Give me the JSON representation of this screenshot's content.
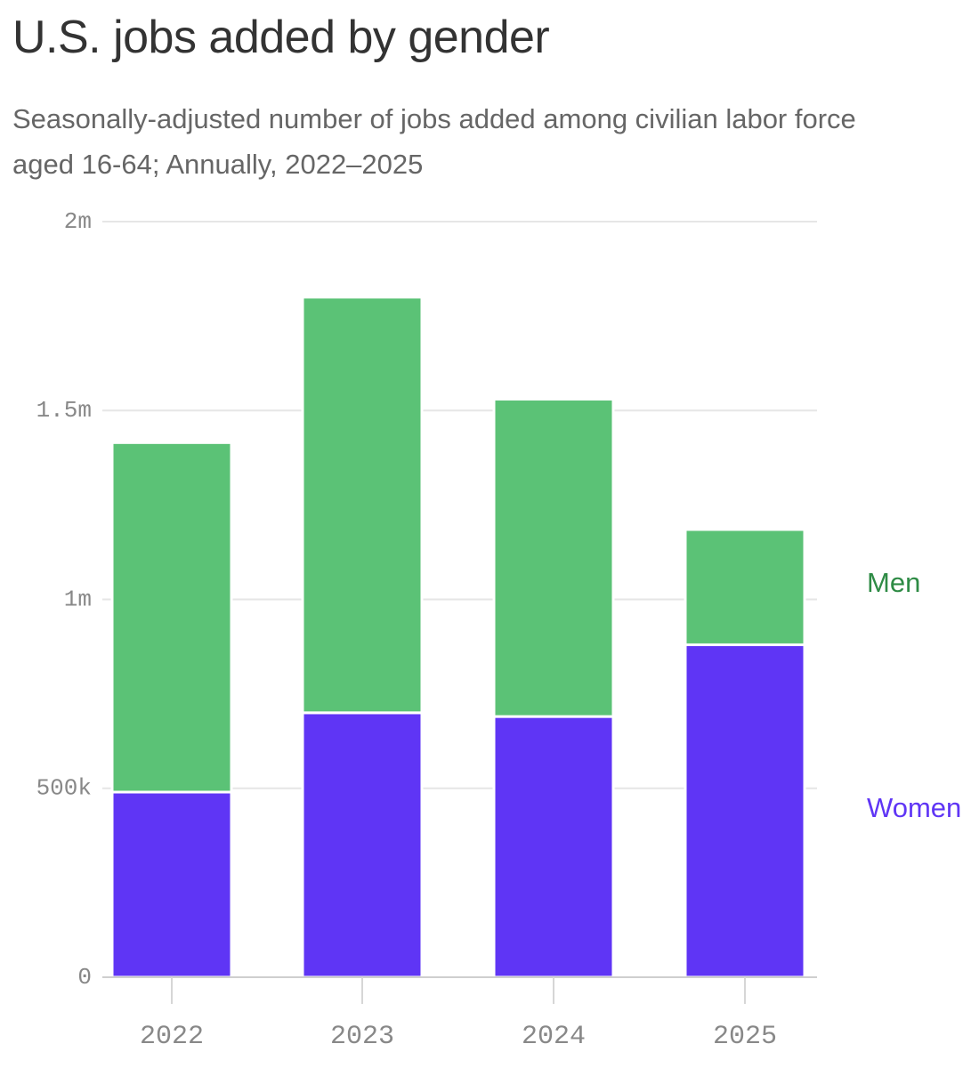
{
  "header": {
    "title": "U.S. jobs added by gender",
    "subtitle": "Seasonally-adjusted number of jobs added among civilian labor force aged 16-64; Annually, 2022–2025"
  },
  "chart_data": {
    "type": "bar",
    "stacked": true,
    "categories": [
      "2022",
      "2023",
      "2024",
      "2025"
    ],
    "series": [
      {
        "name": "Women",
        "color": "#5f35f5",
        "values": [
          490000,
          700000,
          690000,
          880000
        ]
      },
      {
        "name": "Men",
        "color": "#5bc276",
        "values": [
          925000,
          1100000,
          840000,
          305000
        ]
      }
    ],
    "ylim": [
      0,
      2000000
    ],
    "yticks": [
      {
        "value": 0,
        "label": "0"
      },
      {
        "value": 500000,
        "label": "500k"
      },
      {
        "value": 1000000,
        "label": "1m"
      },
      {
        "value": 1500000,
        "label": "1.5m"
      },
      {
        "value": 2000000,
        "label": "2m"
      }
    ],
    "grid": true,
    "legend": "right, inline labels",
    "label_colors": {
      "Men": "#2e8b45",
      "Women": "#5f35f5"
    }
  }
}
